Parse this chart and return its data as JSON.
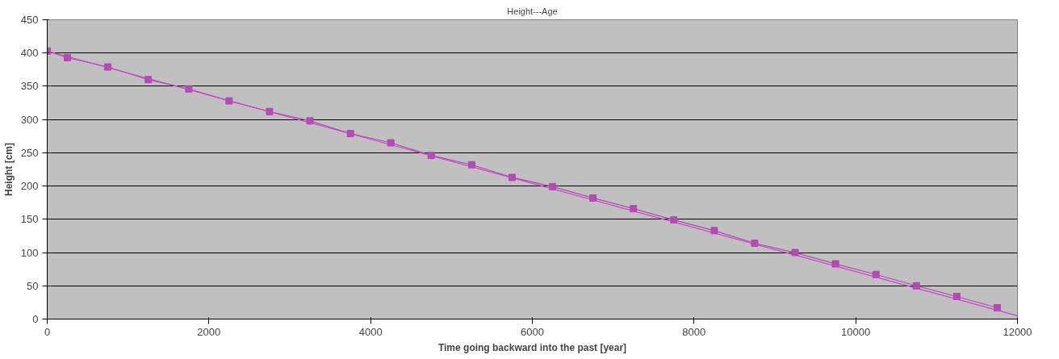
{
  "chart_data": {
    "type": "line",
    "title": "Height---Age",
    "xlabel": "Time going backward into the past [year]",
    "ylabel": "Height [cm]",
    "x": [
      0,
      250,
      750,
      1250,
      1750,
      2250,
      2750,
      3250,
      3750,
      4250,
      4750,
      5250,
      5750,
      6250,
      6750,
      7250,
      7750,
      8250,
      8750,
      9250,
      9750,
      10250,
      10750,
      11250,
      11750
    ],
    "series": [
      {
        "color": "#b04cb0",
        "marker": "square",
        "values": [
          403,
          393,
          379,
          360,
          346,
          328,
          312,
          298,
          279,
          265,
          246,
          232,
          213,
          199,
          182,
          166,
          149,
          133,
          114,
          100,
          83,
          67,
          50,
          34,
          17
        ]
      },
      {
        "type": "line",
        "color": "#cc44cc",
        "marker": "none",
        "x": [
          0,
          12000
        ],
        "values": [
          403,
          5
        ]
      }
    ],
    "xlim": [
      0,
      12000
    ],
    "xticks": [
      0,
      2000,
      4000,
      6000,
      8000,
      10000,
      12000
    ],
    "ylim": [
      0,
      450
    ],
    "yticks": [
      0,
      50,
      100,
      150,
      200,
      250,
      300,
      350,
      400,
      450
    ],
    "grid": "y"
  }
}
